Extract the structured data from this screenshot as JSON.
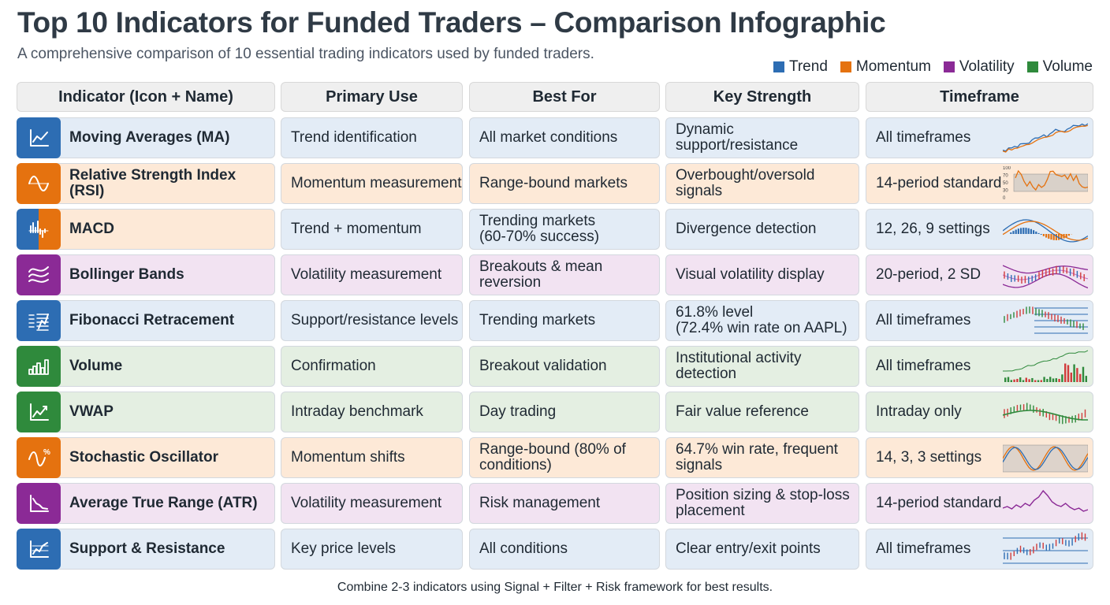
{
  "title": "Top 10 Indicators for Funded Traders – Comparison Infographic",
  "subtitle": "A comprehensive comparison of 10 essential trading indicators used by funded traders.",
  "legend": [
    {
      "label": "Trend",
      "color": "#2d6db3"
    },
    {
      "label": "Momentum",
      "color": "#e5720f"
    },
    {
      "label": "Volatility",
      "color": "#8b2a96"
    },
    {
      "label": "Volume",
      "color": "#2f8a3c"
    }
  ],
  "headers": [
    "Indicator (Icon + Name)",
    "Primary Use",
    "Best For",
    "Key Strength",
    "Timeframe"
  ],
  "rows": [
    {
      "name": "Moving Averages (MA)",
      "category": "trend",
      "icon": "line-chart-icon",
      "use": "Trend identification",
      "best": "All market conditions",
      "strength": "Dynamic support/resistance",
      "timeframe": "All timeframes",
      "chart": "ma-lines"
    },
    {
      "name": "Relative Strength Index (RSI)",
      "category": "momentum",
      "icon": "sine-wave-icon",
      "use": "Momentum measurement",
      "best": "Range-bound markets",
      "strength": "Overbought/oversold signals",
      "timeframe": "14-period standard",
      "chart": "rsi-band"
    },
    {
      "name": "MACD",
      "category": "split",
      "icon": "histogram-icon",
      "use": "Trend + momentum",
      "best": "Trending markets\n(60-70% success)",
      "strength": "Divergence detection",
      "timeframe": "12, 26, 9 settings",
      "chart": "macd"
    },
    {
      "name": "Bollinger Bands",
      "category": "volatility",
      "icon": "bands-icon",
      "use": "Volatility measurement",
      "best": "Breakouts & mean reversion",
      "strength": "Visual volatility display",
      "timeframe": "20-period, 2 SD",
      "chart": "bollinger"
    },
    {
      "name": "Fibonacci Retracement",
      "category": "trend",
      "icon": "fibonacci-levels-icon",
      "use": "Support/resistance levels",
      "best": "Trending markets",
      "strength": "61.8% level\n(72.4% win rate on AAPL)",
      "timeframe": "All timeframes",
      "chart": "fib"
    },
    {
      "name": "Volume",
      "category": "volume",
      "icon": "volume-bars-icon",
      "use": "Confirmation",
      "best": "Breakout validation",
      "strength": "Institutional activity\ndetection",
      "timeframe": "All timeframes",
      "chart": "volume"
    },
    {
      "name": "VWAP",
      "category": "volume",
      "icon": "trend-up-icon",
      "use": "Intraday benchmark",
      "best": "Day trading",
      "strength": "Fair value reference",
      "timeframe": "Intraday only",
      "chart": "vwap"
    },
    {
      "name": "Stochastic Oscillator",
      "category": "momentum",
      "icon": "oscillator-percent-icon",
      "use": "Momentum shifts",
      "best": "Range-bound (80% of\nconditions)",
      "strength": "64.7% win rate, frequent\nsignals",
      "timeframe": "14, 3, 3 settings",
      "chart": "stoch"
    },
    {
      "name": "Average True Range (ATR)",
      "category": "volatility",
      "icon": "decline-chart-icon",
      "use": "Volatility measurement",
      "best": "Risk management",
      "strength": "Position sizing & stop-loss\nplacement",
      "timeframe": "14-period standard",
      "chart": "atr"
    },
    {
      "name": "Support & Resistance",
      "category": "trend",
      "icon": "levels-chart-icon",
      "use": "Key price levels",
      "best": "All conditions",
      "strength": "Clear entry/exit points",
      "timeframe": "All timeframes",
      "chart": "sr"
    }
  ],
  "rsi_axis": [
    "100",
    "70",
    "50",
    "30",
    "0"
  ],
  "footer": "Combine 2-3 indicators using Signal + Filter + Risk framework for best results."
}
